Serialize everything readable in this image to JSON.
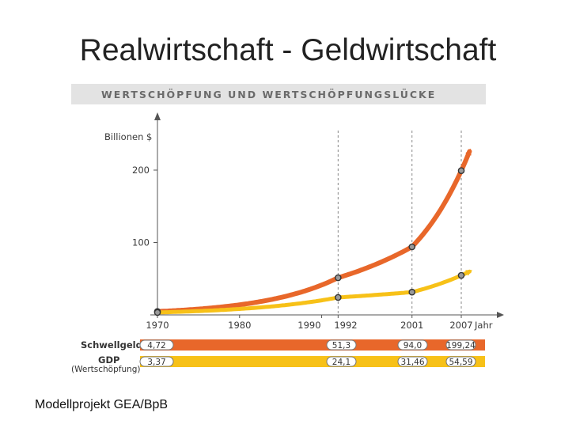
{
  "slide": {
    "title": "Realwirtschaft - Geldwirtschaft",
    "footer": "Modellprojekt GEA/BpB"
  },
  "chart_data": {
    "type": "line",
    "title": "WERTSCHÖPFUNG UND WERTSCHÖPFUNGSLÜCKE",
    "ylabel": "Billionen $",
    "xlabel_suffix": "Jahr",
    "ylim": [
      0,
      200
    ],
    "yticks": [
      100,
      200
    ],
    "xticks": [
      "1970",
      "1980",
      "1990",
      "1992",
      "2001",
      "2007"
    ],
    "x": [
      1970,
      1992,
      2001,
      2007
    ],
    "series": [
      {
        "name": "Schwellgeld",
        "values": [
          4.72,
          51.3,
          94.0,
          199.24
        ],
        "labels": [
          "4,72",
          "51,3",
          "94,0",
          "199,24"
        ],
        "color": "#e8672a"
      },
      {
        "name": "GDP",
        "note": "(Wertschöpfung)",
        "values": [
          3.37,
          24.1,
          31.46,
          54.59
        ],
        "labels": [
          "3,37",
          "24,1",
          "31,46",
          "54,59"
        ],
        "color": "#f7c118"
      }
    ],
    "grid": false
  }
}
